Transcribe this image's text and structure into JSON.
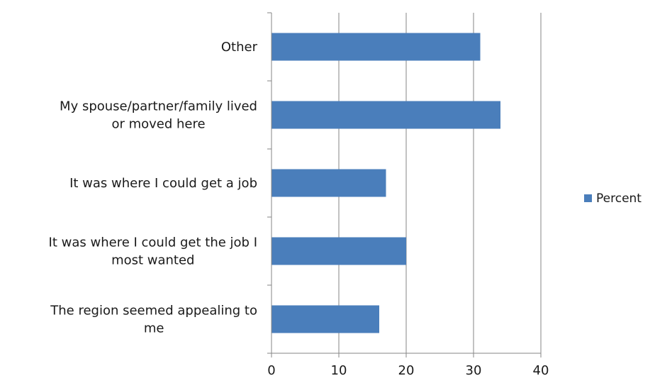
{
  "chart_data": {
    "type": "bar",
    "orientation": "horizontal",
    "title": "",
    "xlabel": "",
    "ylabel": "",
    "categories": [
      "The region seemed appealing to me",
      "It was where I could get the job I most wanted",
      "It was where I could get a job",
      "My spouse/partner/family lived or moved here",
      "Other"
    ],
    "category_label_lines": [
      [
        "The region seemed appealing to",
        "me"
      ],
      [
        "It was where I could get the job I",
        "most wanted"
      ],
      [
        "It was where I could get a job"
      ],
      [
        "My spouse/partner/family lived",
        "or moved here"
      ],
      [
        "Other"
      ]
    ],
    "series": [
      {
        "name": "Percent",
        "color": "#4a7ebb",
        "values": [
          16,
          20,
          17,
          34,
          31
        ]
      }
    ],
    "xlim": [
      0,
      40
    ],
    "xticks": [
      0,
      10,
      20,
      30,
      40
    ],
    "grid": "vertical major gridlines",
    "legend_position": "right"
  }
}
